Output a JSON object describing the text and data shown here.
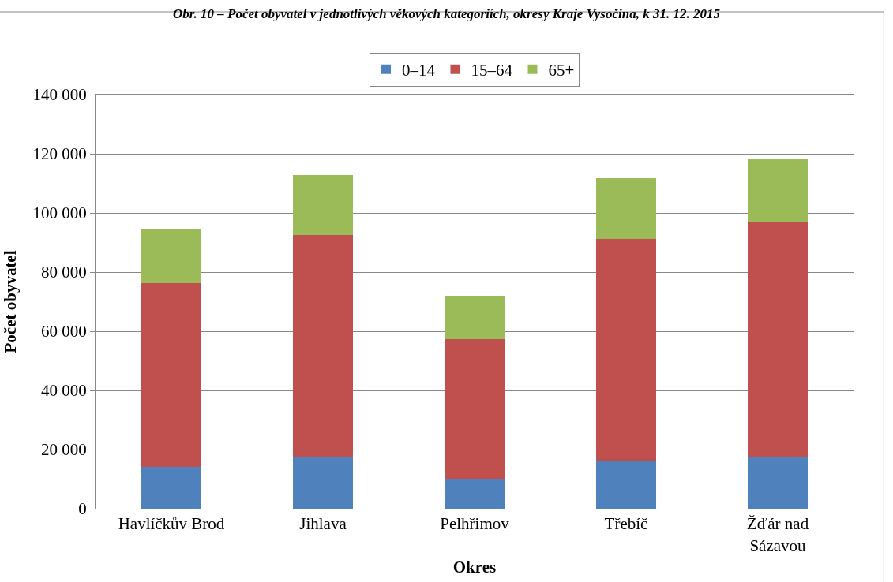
{
  "chart_data": {
    "type": "bar",
    "title": "Obr. 10 – Počet obyvatel v jednotlivých věkových kategoriích, okresy Kraje Vysočina, k 31. 12. 2015",
    "xlabel": "Okres",
    "ylabel": "Počet obyvatel",
    "categories": [
      "Havlíčkův Brod",
      "Jihlava",
      "Pelhřimov",
      "Třebíč",
      "Žďár nad Sázavou"
    ],
    "series": [
      {
        "name": "0–14",
        "color": "#4f81bd",
        "values": [
          14100,
          17400,
          10000,
          16000,
          17700
        ]
      },
      {
        "name": "15–64",
        "color": "#c0504d",
        "values": [
          62100,
          75100,
          47400,
          75100,
          79000
        ]
      },
      {
        "name": "65+",
        "color": "#9bbb59",
        "values": [
          18500,
          20200,
          14700,
          20700,
          21800
        ]
      }
    ],
    "stacked": true,
    "ylim": [
      0,
      140000
    ],
    "yticks": [
      {
        "value": 0,
        "label": "0"
      },
      {
        "value": 20000,
        "label": "20 000"
      },
      {
        "value": 40000,
        "label": "40 000"
      },
      {
        "value": 60000,
        "label": "60 000"
      },
      {
        "value": 80000,
        "label": "80 000"
      },
      {
        "value": 100000,
        "label": "100 000"
      },
      {
        "value": 120000,
        "label": "120 000"
      },
      {
        "value": 140000,
        "label": "140 000"
      }
    ],
    "grid": "y",
    "legend": "top"
  }
}
